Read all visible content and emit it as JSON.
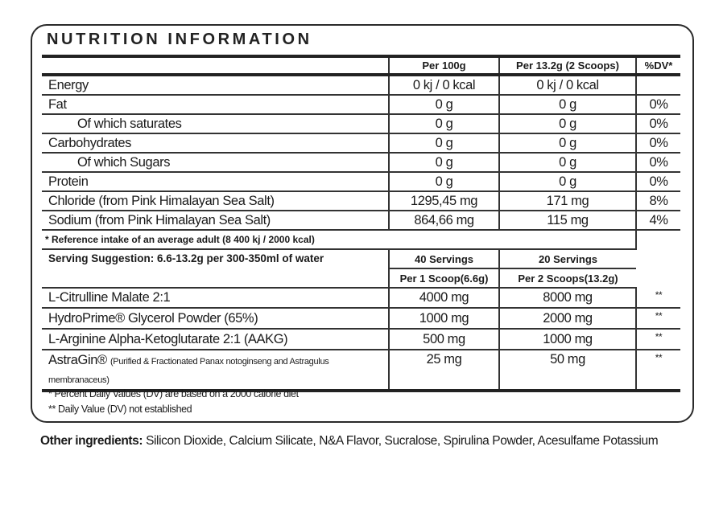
{
  "title": "NUTRITION INFORMATION",
  "headers": [
    "",
    "Per 100g",
    "Per 13.2g (2 Scoops)",
    "%DV*"
  ],
  "nutrients": [
    {
      "name": "Energy",
      "indent": false,
      "per100": "0 kj / 0 kcal",
      "perServing": "0 kj / 0 kcal",
      "dv": ""
    },
    {
      "name": "Fat",
      "indent": false,
      "per100": "0 g",
      "perServing": "0 g",
      "dv": "0%"
    },
    {
      "name": "Of which saturates",
      "indent": true,
      "per100": "0 g",
      "perServing": "0 g",
      "dv": "0%"
    },
    {
      "name": "Carbohydrates",
      "indent": false,
      "per100": "0 g",
      "perServing": "0 g",
      "dv": "0%"
    },
    {
      "name": "Of which Sugars",
      "indent": true,
      "per100": "0 g",
      "perServing": "0 g",
      "dv": "0%"
    },
    {
      "name": "Protein",
      "indent": false,
      "per100": "0 g",
      "perServing": "0 g",
      "dv": "0%"
    },
    {
      "name": "Chloride (from Pink Himalayan Sea Salt)",
      "indent": false,
      "per100": "1295,45 mg",
      "perServing": "171 mg",
      "dv": "8%"
    },
    {
      "name": "Sodium (from Pink Himalayan Sea Salt)",
      "indent": false,
      "per100": "864,66 mg",
      "perServing": "115 mg",
      "dv": "4%"
    }
  ],
  "reference_note": "* Reference intake of an average adult (8 400 kj / 2000 kcal)",
  "serving": {
    "suggestion": "Serving Suggestion: 6.6-13.2g per 300-350ml of water",
    "col1_servings": "40 Servings",
    "col2_servings": "20 Servings",
    "col1_per": "Per 1 Scoop(6.6g)",
    "col2_per": "Per 2 Scoops(13.2g)"
  },
  "ingredients": [
    {
      "name": "L-Citrulline Malate 2:1",
      "sub": "",
      "one": "4000 mg",
      "two": "8000 mg",
      "dv": "**"
    },
    {
      "name": "HydroPrime® Glycerol Powder (65%)",
      "sub": "",
      "one": "1000 mg",
      "two": "2000 mg",
      "dv": "**"
    },
    {
      "name": "L-Arginine Alpha-Ketoglutarate 2:1 (AAKG)",
      "sub": "",
      "one": "500 mg",
      "two": "1000 mg",
      "dv": "**"
    },
    {
      "name": "AstraGin®",
      "sub": "(Purified & Fractionated Panax notoginseng and Astragulus membranaceus)",
      "one": "25 mg",
      "two": "50 mg",
      "dv": "**"
    }
  ],
  "footnotes": [
    "* Percent Daily Values (DV) are based on a 2000 calorie diet",
    "** Daily Value (DV) not established"
  ],
  "other_ingredients": {
    "label": "Other ingredients:",
    "text": " Silicon Dioxide, Calcium Silicate, N&A Flavor, Sucralose, Spirulina Powder, Acesulfame Potassium"
  }
}
